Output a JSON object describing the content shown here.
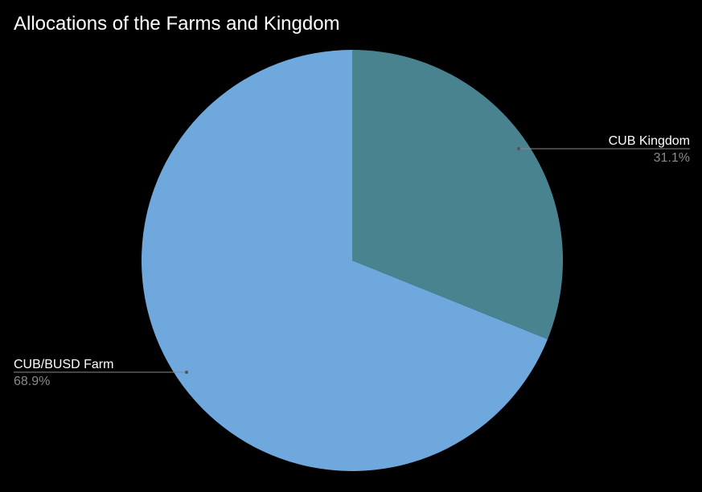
{
  "chart_data": {
    "type": "pie",
    "title": "Allocations of the Farms and Kingdom",
    "start_angle_deg": 0,
    "direction": "clockwise",
    "slices": [
      {
        "label": "CUB Kingdom",
        "value": 31.1,
        "percent_label": "31.1%",
        "color": "#4a8390"
      },
      {
        "label": "CUB/BUSD Farm",
        "value": 68.9,
        "percent_label": "68.9%",
        "color": "#6fa8dc"
      }
    ],
    "label_style": "leader-lines",
    "background": "#000000",
    "label_color": "#ffffff",
    "percent_color": "#8a8a8a",
    "leader_color": "#888888"
  }
}
